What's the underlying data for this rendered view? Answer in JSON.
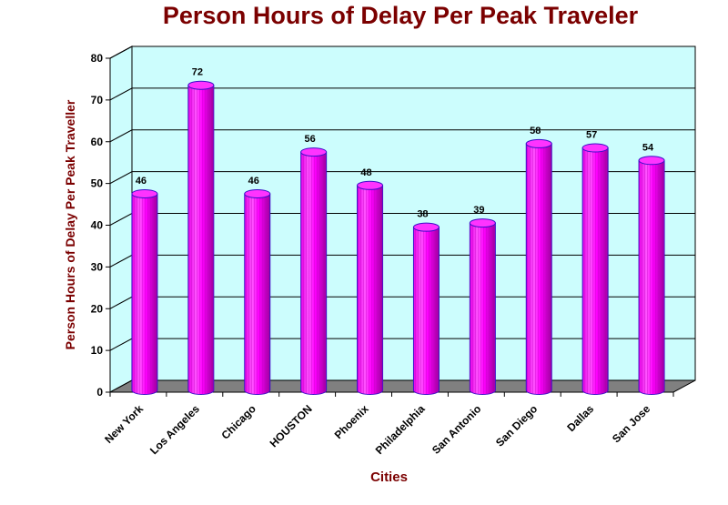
{
  "chart_data": {
    "type": "bar",
    "title": "Person Hours of Delay Per Peak Traveler",
    "xlabel": "Cities",
    "ylabel": "Person Hours of Delay Per Peak Traveller",
    "categories": [
      "New York",
      "Los Angeles",
      "Chicago",
      "HOUSTON",
      "Phoenix",
      "Philadelphia",
      "San Antonio",
      "San Diego",
      "Dallas",
      "San Jose"
    ],
    "values": [
      46,
      72,
      46,
      56,
      48,
      38,
      39,
      58,
      57,
      54
    ],
    "ylim": [
      0,
      80
    ],
    "yticks": [
      0,
      10,
      20,
      30,
      40,
      50,
      60,
      70,
      80
    ],
    "grid": true,
    "style": "3d-cylinder",
    "colors": {
      "bar": "#ff00ff",
      "bar_dark": "#9b009b",
      "bar_outline": "#3a10c8",
      "wall": "#ccfdfd",
      "floor": "#808080",
      "title": "#7b0000"
    }
  }
}
